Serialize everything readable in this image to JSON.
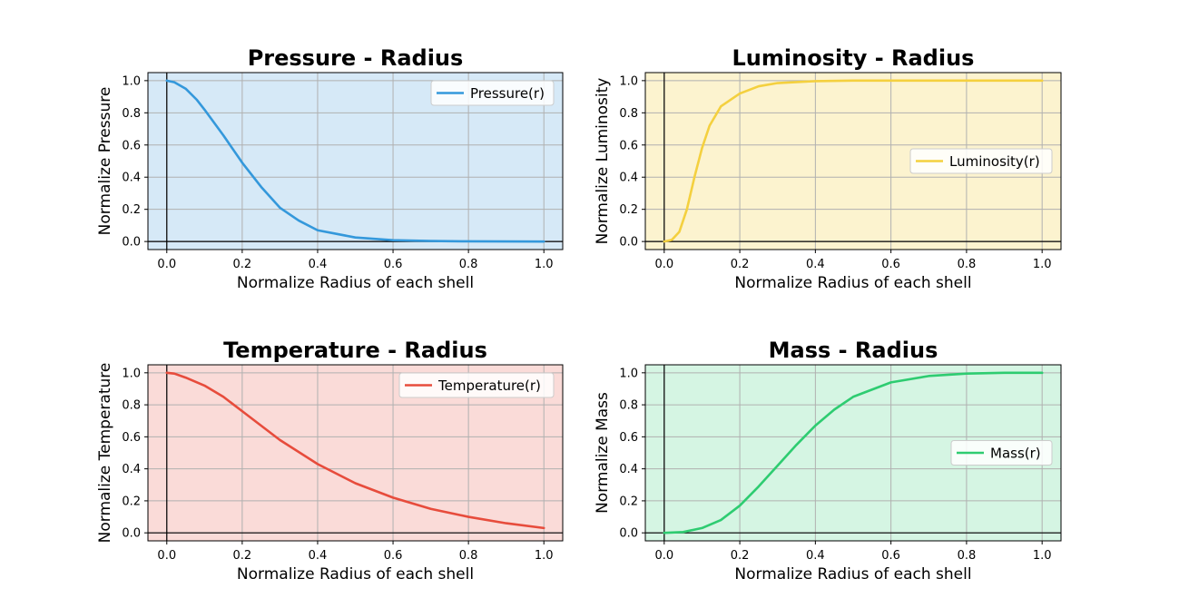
{
  "chart_data": [
    {
      "type": "line",
      "title": "Pressure - Radius",
      "xlabel": "Normalize Radius of each shell",
      "ylabel": "Normalize Pressure",
      "xlim": [
        -0.05,
        1.05
      ],
      "ylim": [
        -0.05,
        1.05
      ],
      "xticks": [
        "0.0",
        "0.2",
        "0.4",
        "0.6",
        "0.8",
        "1.0"
      ],
      "yticks": [
        "0.0",
        "0.2",
        "0.4",
        "0.6",
        "0.8",
        "1.0"
      ],
      "grid": true,
      "legend_position": "top-right",
      "background_color": "#d6e9f7",
      "series": [
        {
          "name": "Pressure(r)",
          "color": "#3498db",
          "x": [
            0,
            0.02,
            0.05,
            0.08,
            0.1,
            0.15,
            0.2,
            0.25,
            0.3,
            0.35,
            0.4,
            0.5,
            0.6,
            0.7,
            0.8,
            1.0
          ],
          "y": [
            1.0,
            0.99,
            0.95,
            0.88,
            0.82,
            0.66,
            0.49,
            0.34,
            0.21,
            0.13,
            0.07,
            0.025,
            0.008,
            0.003,
            0.001,
            0.0
          ]
        }
      ]
    },
    {
      "type": "line",
      "title": "Luminosity - Radius",
      "xlabel": "Normalize Radius of each shell",
      "ylabel": "Normalize Luminosity",
      "xlim": [
        -0.05,
        1.05
      ],
      "ylim": [
        -0.05,
        1.05
      ],
      "xticks": [
        "0.0",
        "0.2",
        "0.4",
        "0.6",
        "0.8",
        "1.0"
      ],
      "yticks": [
        "0.0",
        "0.2",
        "0.4",
        "0.6",
        "0.8",
        "1.0"
      ],
      "grid": true,
      "legend_position": "center-right",
      "background_color": "#fcf3cf",
      "series": [
        {
          "name": "Luminosity(r)",
          "color": "#f4d03f",
          "x": [
            0,
            0.02,
            0.04,
            0.06,
            0.08,
            0.1,
            0.12,
            0.15,
            0.2,
            0.25,
            0.3,
            0.4,
            0.5,
            0.6,
            0.8,
            1.0
          ],
          "y": [
            0.0,
            0.01,
            0.06,
            0.2,
            0.4,
            0.58,
            0.72,
            0.84,
            0.92,
            0.965,
            0.985,
            0.997,
            1.0,
            1.0,
            1.0,
            1.0
          ]
        }
      ]
    },
    {
      "type": "line",
      "title": "Temperature - Radius",
      "xlabel": "Normalize Radius of each shell",
      "ylabel": "Normalize Temperature",
      "xlim": [
        -0.05,
        1.05
      ],
      "ylim": [
        -0.05,
        1.05
      ],
      "xticks": [
        "0.0",
        "0.2",
        "0.4",
        "0.6",
        "0.8",
        "1.0"
      ],
      "yticks": [
        "0.0",
        "0.2",
        "0.4",
        "0.6",
        "0.8",
        "1.0"
      ],
      "grid": true,
      "legend_position": "top-right",
      "background_color": "#fadbd8",
      "series": [
        {
          "name": "Temperature(r)",
          "color": "#e74c3c",
          "x": [
            0,
            0.02,
            0.05,
            0.1,
            0.15,
            0.2,
            0.25,
            0.3,
            0.4,
            0.5,
            0.6,
            0.7,
            0.8,
            0.9,
            1.0
          ],
          "y": [
            1.0,
            0.995,
            0.97,
            0.92,
            0.85,
            0.76,
            0.67,
            0.58,
            0.43,
            0.31,
            0.22,
            0.15,
            0.1,
            0.06,
            0.03
          ]
        }
      ]
    },
    {
      "type": "line",
      "title": "Mass - Radius",
      "xlabel": "Normalize Radius of each shell",
      "ylabel": "Normalize Mass",
      "xlim": [
        -0.05,
        1.05
      ],
      "ylim": [
        -0.05,
        1.05
      ],
      "xticks": [
        "0.0",
        "0.2",
        "0.4",
        "0.6",
        "0.8",
        "1.0"
      ],
      "yticks": [
        "0.0",
        "0.2",
        "0.4",
        "0.6",
        "0.8",
        "1.0"
      ],
      "grid": true,
      "legend_position": "center-right",
      "background_color": "#d5f5e3",
      "series": [
        {
          "name": "Mass(r)",
          "color": "#2ecc71",
          "x": [
            0,
            0.05,
            0.1,
            0.15,
            0.2,
            0.25,
            0.3,
            0.35,
            0.4,
            0.45,
            0.5,
            0.6,
            0.7,
            0.8,
            0.9,
            1.0
          ],
          "y": [
            0.0,
            0.005,
            0.03,
            0.08,
            0.17,
            0.29,
            0.42,
            0.55,
            0.67,
            0.77,
            0.85,
            0.94,
            0.98,
            0.995,
            1.0,
            1.0
          ]
        }
      ]
    }
  ]
}
